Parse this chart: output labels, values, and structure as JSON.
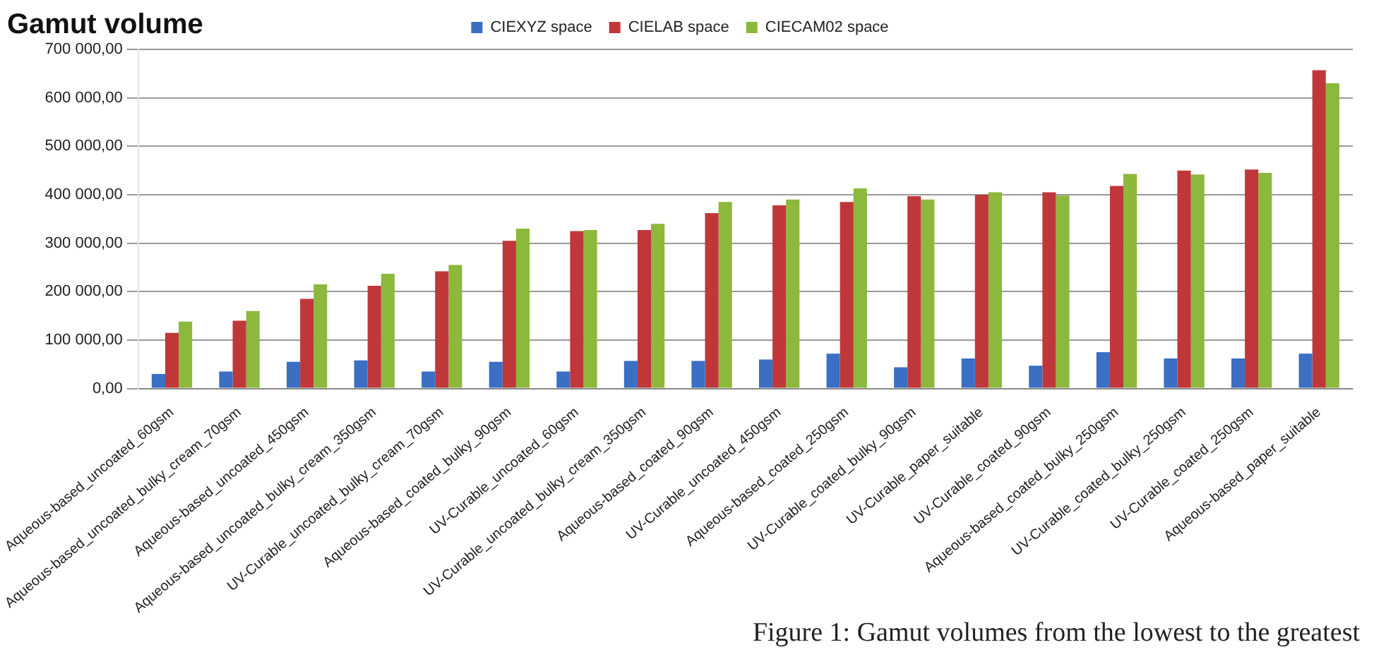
{
  "chart_data": {
    "type": "bar",
    "title": "Gamut volume",
    "categories": [
      "Aqueous-based_uncoated_60gsm",
      "Aqueous-based_uncoated_bulky_cream_70gsm",
      "Aqueous-based_uncoated_450gsm",
      "Aqueous-based_uncoated_bulky_cream_350gsm",
      "UV-Curable_uncoated_bulky_cream_70gsm",
      "Aqueous-based_coated_bulky_90gsm",
      "UV-Curable_uncoated_60gsm",
      "UV-Curable_uncoated_bulky_cream_350gsm",
      "Aqueous-based_coated_90gsm",
      "UV-Curable_uncoated_450gsm",
      "Aqueous-based_coated_250gsm",
      "UV-Curable_coated_bulky_90gsm",
      "UV-Curable_paper_suitable",
      "UV-Curable_coated_90gsm",
      "Aqueous-based_coated_bulky_250gsm",
      "UV-Curable_coated_bulky_250gsm",
      "UV-Curable_coated_250gsm",
      "Aqueous-based_paper_suitable"
    ],
    "series": [
      {
        "name": "CIEXYZ space",
        "color": "#3a6fc4",
        "values": [
          30000,
          35000,
          55000,
          58000,
          35000,
          55000,
          35000,
          57000,
          57000,
          60000,
          72000,
          44000,
          62000,
          47000,
          75000,
          62000,
          62000,
          72000
        ]
      },
      {
        "name": "CIELAB space",
        "color": "#c0373a",
        "values": [
          115000,
          140000,
          185000,
          212000,
          242000,
          305000,
          325000,
          327000,
          362000,
          378000,
          385000,
          397000,
          400000,
          405000,
          418000,
          450000,
          452000,
          657000
        ]
      },
      {
        "name": "CIECAM02 space",
        "color": "#8cb83c",
        "values": [
          138000,
          160000,
          215000,
          237000,
          255000,
          330000,
          327000,
          340000,
          385000,
          390000,
          413000,
          390000,
          405000,
          398000,
          443000,
          442000,
          445000,
          630000
        ]
      }
    ],
    "ylim": [
      0,
      700000
    ],
    "yticks": [
      {
        "value": 0,
        "label": "0,00"
      },
      {
        "value": 100000,
        "label": "100 000,00"
      },
      {
        "value": 200000,
        "label": "200 000,00"
      },
      {
        "value": 300000,
        "label": "300 000,00"
      },
      {
        "value": 400000,
        "label": "400 000,00"
      },
      {
        "value": 500000,
        "label": "500 000,00"
      },
      {
        "value": 600000,
        "label": "600 000,00"
      },
      {
        "value": 700000,
        "label": "700 000,00"
      }
    ],
    "grid": "y",
    "legend": "top",
    "annotations": [
      "Figure 1: Gamut volumes from the lowest to the greatest"
    ]
  }
}
